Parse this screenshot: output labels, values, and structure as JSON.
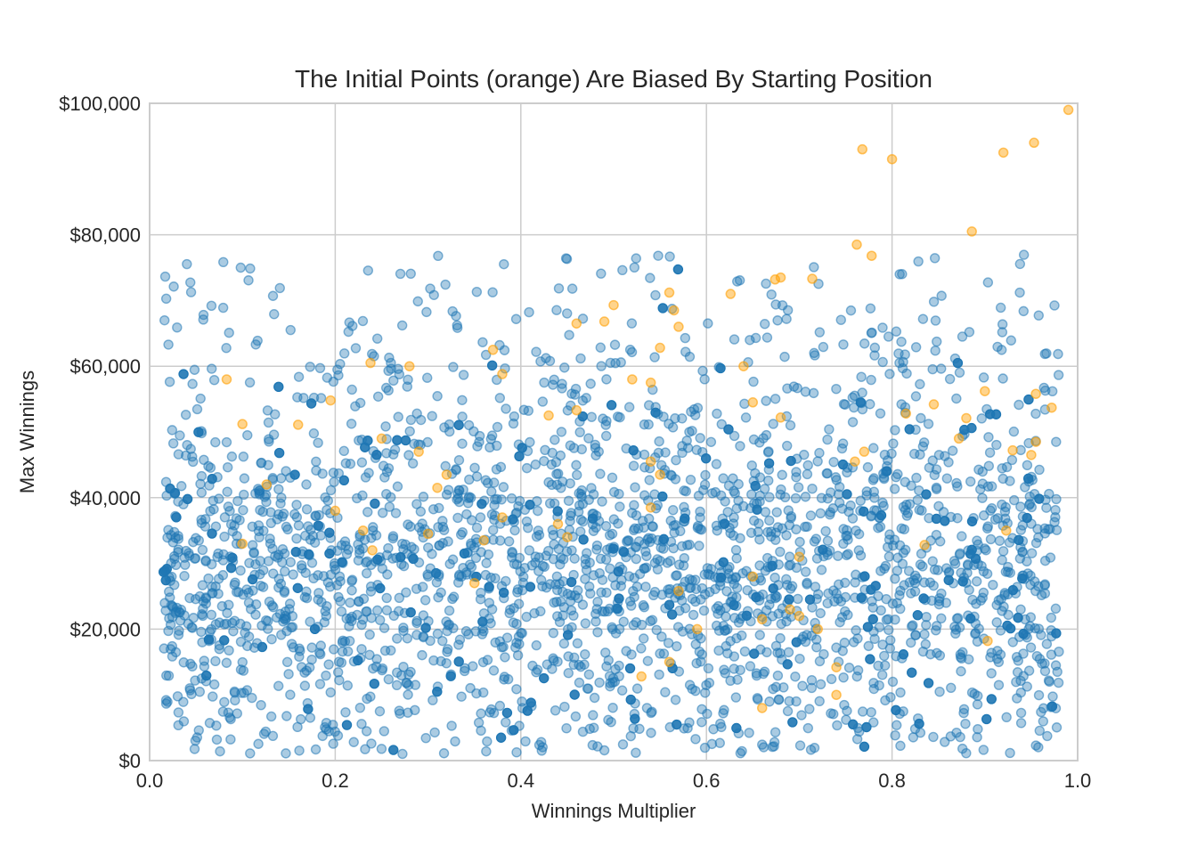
{
  "chart_data": {
    "type": "scatter",
    "title": "The Initial Points (orange) Are Biased By Starting Position",
    "xlabel": "Winnings Multiplier",
    "ylabel": "Max Winnings",
    "xlim": [
      0,
      1
    ],
    "ylim": [
      0,
      100000
    ],
    "x_ticks": [
      0,
      0.2,
      0.4,
      0.6,
      0.8,
      1.0
    ],
    "x_tick_labels": [
      "0.0",
      "0.2",
      "0.4",
      "0.6",
      "0.8",
      "1.0"
    ],
    "y_ticks": [
      0,
      20000,
      40000,
      60000,
      80000,
      100000
    ],
    "y_tick_labels": [
      "$0",
      "$20,000",
      "$40,000",
      "$60,000",
      "$80,000",
      "$100,000"
    ],
    "grid": true,
    "colors": {
      "main": "#1f77b4",
      "initial": "#ff9f00",
      "grid": "#cccccc",
      "text": "#262626"
    },
    "series": [
      {
        "color": "#ff9f00",
        "values": [
          [
            0.99,
            99000
          ],
          [
            0.953,
            94000
          ],
          [
            0.92,
            92500
          ],
          [
            0.768,
            93000
          ],
          [
            0.8,
            91500
          ],
          [
            0.886,
            80500
          ],
          [
            0.762,
            78500
          ],
          [
            0.778,
            76800
          ],
          [
            0.68,
            73500
          ],
          [
            0.674,
            73200
          ],
          [
            0.714,
            73300
          ],
          [
            0.626,
            71000
          ],
          [
            0.56,
            71200
          ],
          [
            0.565,
            68500
          ],
          [
            0.57,
            66000
          ],
          [
            0.49,
            66800
          ],
          [
            0.46,
            66500
          ],
          [
            0.5,
            69300
          ],
          [
            0.083,
            58000
          ],
          [
            0.1,
            51200
          ],
          [
            0.126,
            42000
          ],
          [
            0.16,
            51100
          ],
          [
            0.195,
            54800
          ],
          [
            0.238,
            60500
          ],
          [
            0.28,
            60000
          ],
          [
            0.37,
            62500
          ],
          [
            0.38,
            58800
          ],
          [
            0.43,
            52500
          ],
          [
            0.46,
            53300
          ],
          [
            0.55,
            62800
          ],
          [
            0.54,
            57500
          ],
          [
            0.52,
            58000
          ],
          [
            0.54,
            45500
          ],
          [
            0.55,
            43500
          ],
          [
            0.64,
            60000
          ],
          [
            0.65,
            54500
          ],
          [
            0.68,
            52200
          ],
          [
            0.76,
            45500
          ],
          [
            0.77,
            47000
          ],
          [
            0.815,
            52800
          ],
          [
            0.845,
            54200
          ],
          [
            0.872,
            49000
          ],
          [
            0.88,
            52100
          ],
          [
            0.9,
            56200
          ],
          [
            0.93,
            47200
          ],
          [
            0.955,
            55800
          ],
          [
            0.972,
            53700
          ],
          [
            0.955,
            48500
          ],
          [
            0.95,
            46500
          ],
          [
            0.835,
            32800
          ],
          [
            0.923,
            35000
          ],
          [
            0.903,
            18200
          ],
          [
            0.7,
            31000
          ],
          [
            0.69,
            23000
          ],
          [
            0.7,
            22000
          ],
          [
            0.72,
            20000
          ],
          [
            0.74,
            14200
          ],
          [
            0.65,
            28000
          ],
          [
            0.66,
            21500
          ],
          [
            0.66,
            8000
          ],
          [
            0.57,
            25800
          ],
          [
            0.59,
            20000
          ],
          [
            0.53,
            12800
          ],
          [
            0.56,
            15000
          ],
          [
            0.54,
            38500
          ],
          [
            0.45,
            34000
          ],
          [
            0.44,
            36000
          ],
          [
            0.38,
            37000
          ],
          [
            0.36,
            33500
          ],
          [
            0.35,
            27000
          ],
          [
            0.3,
            34500
          ],
          [
            0.31,
            41500
          ],
          [
            0.32,
            43500
          ],
          [
            0.29,
            47000
          ],
          [
            0.25,
            49000
          ],
          [
            0.24,
            32000
          ],
          [
            0.23,
            35000
          ],
          [
            0.2,
            38000
          ],
          [
            0.1,
            33000
          ],
          [
            0.74,
            10000
          ]
        ]
      }
    ]
  }
}
